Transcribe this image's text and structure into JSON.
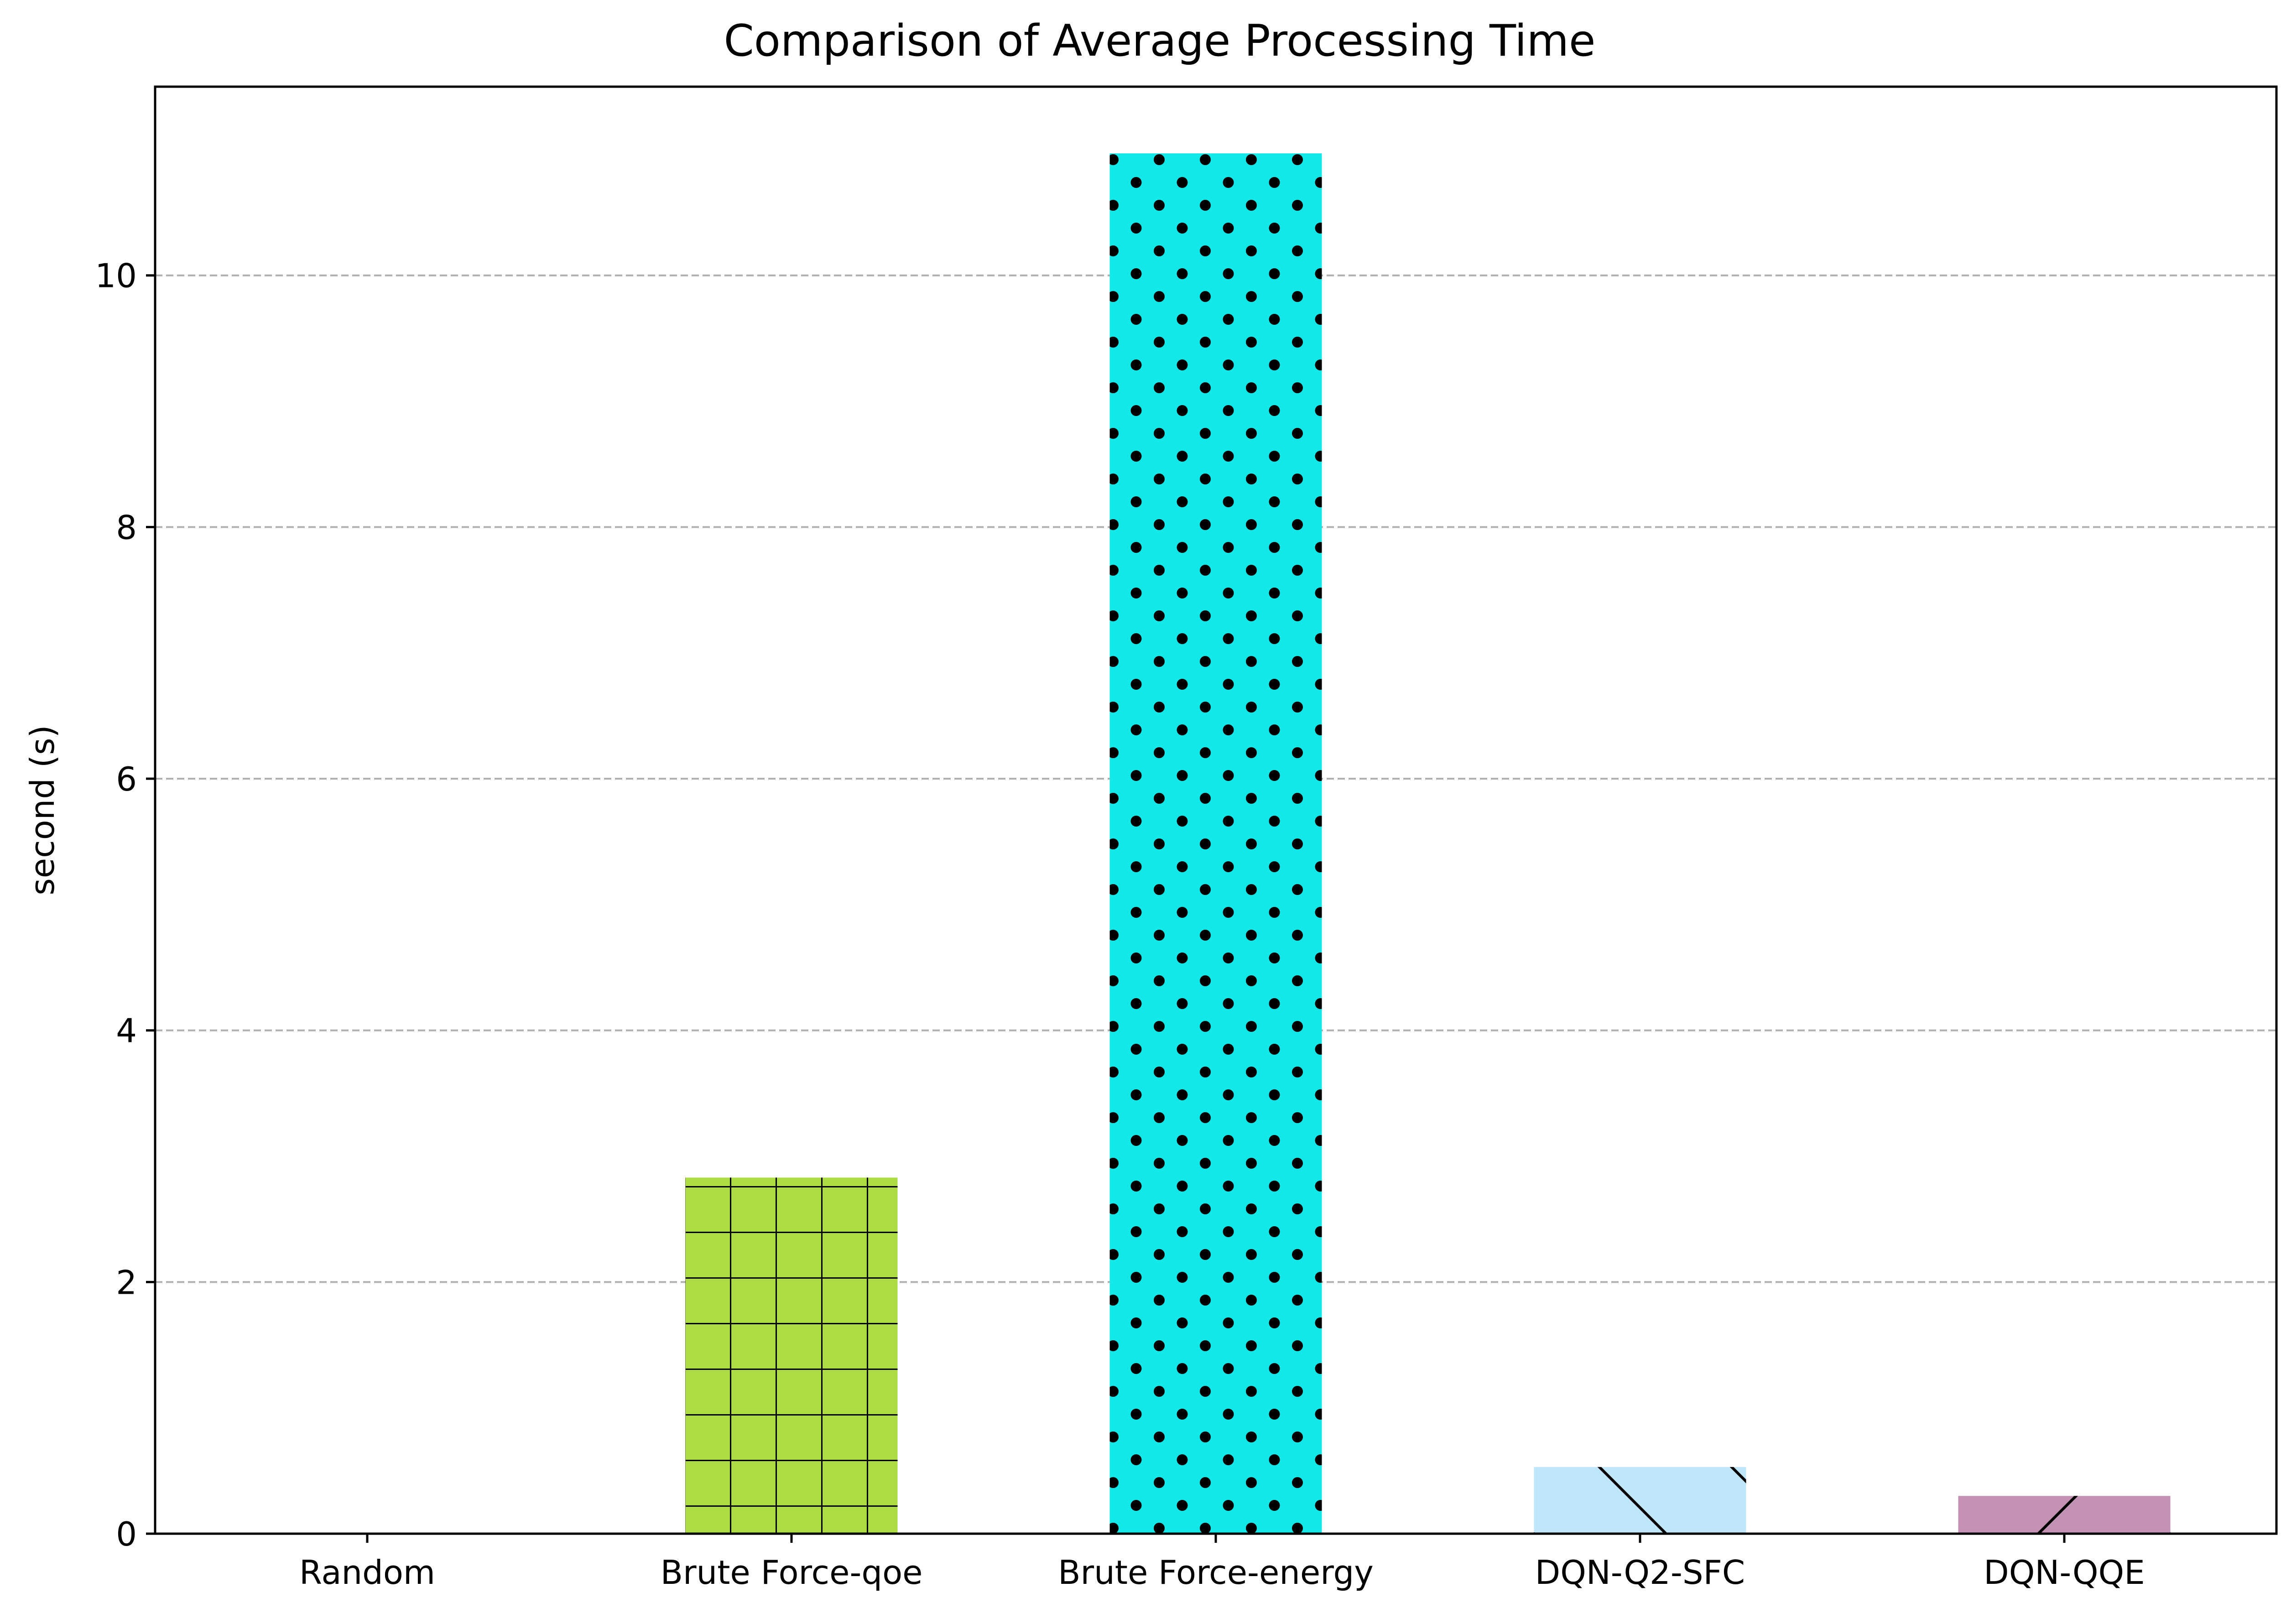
{
  "chart_data": {
    "type": "bar",
    "title": "Comparison of Average Processing Time",
    "xlabel": "",
    "ylabel": "second (s)",
    "categories": [
      "Random",
      "Brute Force-qoe",
      "Brute Force-energy",
      "DQN-Q2-SFC",
      "DQN-QQE"
    ],
    "values": [
      0.0,
      2.83,
      10.97,
      0.53,
      0.3
    ],
    "colors": [
      "#ffffff",
      "#addc43",
      "#13e8e8",
      "#bfe6fa",
      "#c391b3"
    ],
    "hatches": [
      "none",
      "grid",
      "dots",
      "backslash",
      "slash"
    ],
    "ylim": [
      0,
      11.5
    ],
    "yticks": [
      0,
      2,
      4,
      6,
      8,
      10
    ],
    "grid": "y-dashed",
    "legend": "none"
  }
}
